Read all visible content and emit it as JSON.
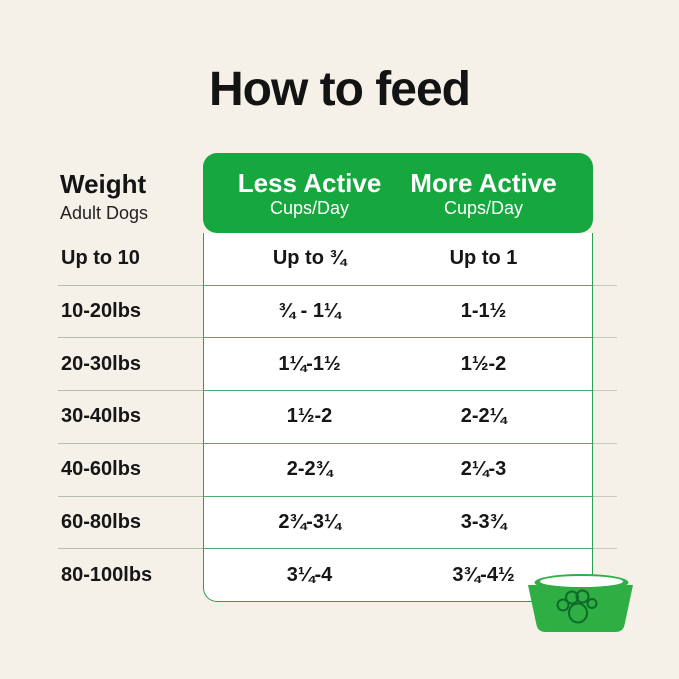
{
  "page": {
    "title": "How to feed"
  },
  "colors": {
    "background": "#f5f1e9",
    "brand_green": "#16a73e",
    "bowl_green": "#2fae44",
    "paw_outline_green": "#0d6b28",
    "panel_border_green": "#2c9e52",
    "row_line_green": "#53a96c",
    "text": "#161616",
    "header_text": "#ffffff"
  },
  "table": {
    "weight_header": {
      "title": "Weight",
      "subtitle": "Adult Dogs"
    },
    "columns": [
      {
        "label": "Less Active",
        "sublabel": "Cups/Day"
      },
      {
        "label": "More Active",
        "sublabel": "Cups/Day"
      }
    ],
    "rows": [
      {
        "weight": "Up to 10",
        "less_active": "Up to ¾",
        "more_active": "Up to 1"
      },
      {
        "weight": "10-20lbs",
        "less_active": "¾ - 1¼",
        "more_active": "1-1½"
      },
      {
        "weight": "20-30lbs",
        "less_active": "1¼-1½",
        "more_active": "1½-2"
      },
      {
        "weight": "30-40lbs",
        "less_active": "1½-2",
        "more_active": "2-2¼"
      },
      {
        "weight": "40-60lbs",
        "less_active": "2-2¾",
        "more_active": "2¼-3"
      },
      {
        "weight": "60-80lbs",
        "less_active": "2¾-3¼",
        "more_active": "3-3¾"
      },
      {
        "weight": "80-100lbs",
        "less_active": "3¼-4",
        "more_active": "3¾-4½"
      }
    ]
  },
  "icons": {
    "bowl": "dog-bowl-with-paw-print"
  },
  "chart_data": {
    "type": "table",
    "title": "How to feed",
    "columns": [
      "Weight (Adult Dogs)",
      "Less Active Cups/Day",
      "More Active Cups/Day"
    ],
    "rows": [
      [
        "Up to 10",
        "Up to ¾",
        "Up to 1"
      ],
      [
        "10-20lbs",
        "¾ - 1¼",
        "1-1½"
      ],
      [
        "20-30lbs",
        "1¼-1½",
        "1½-2"
      ],
      [
        "30-40lbs",
        "1½-2",
        "2-2¼"
      ],
      [
        "40-60lbs",
        "2-2¾",
        "2¼-3"
      ],
      [
        "60-80lbs",
        "2¾-3¼",
        "3-3¾"
      ],
      [
        "80-100lbs",
        "3¼-4",
        "3¾-4½"
      ]
    ]
  }
}
